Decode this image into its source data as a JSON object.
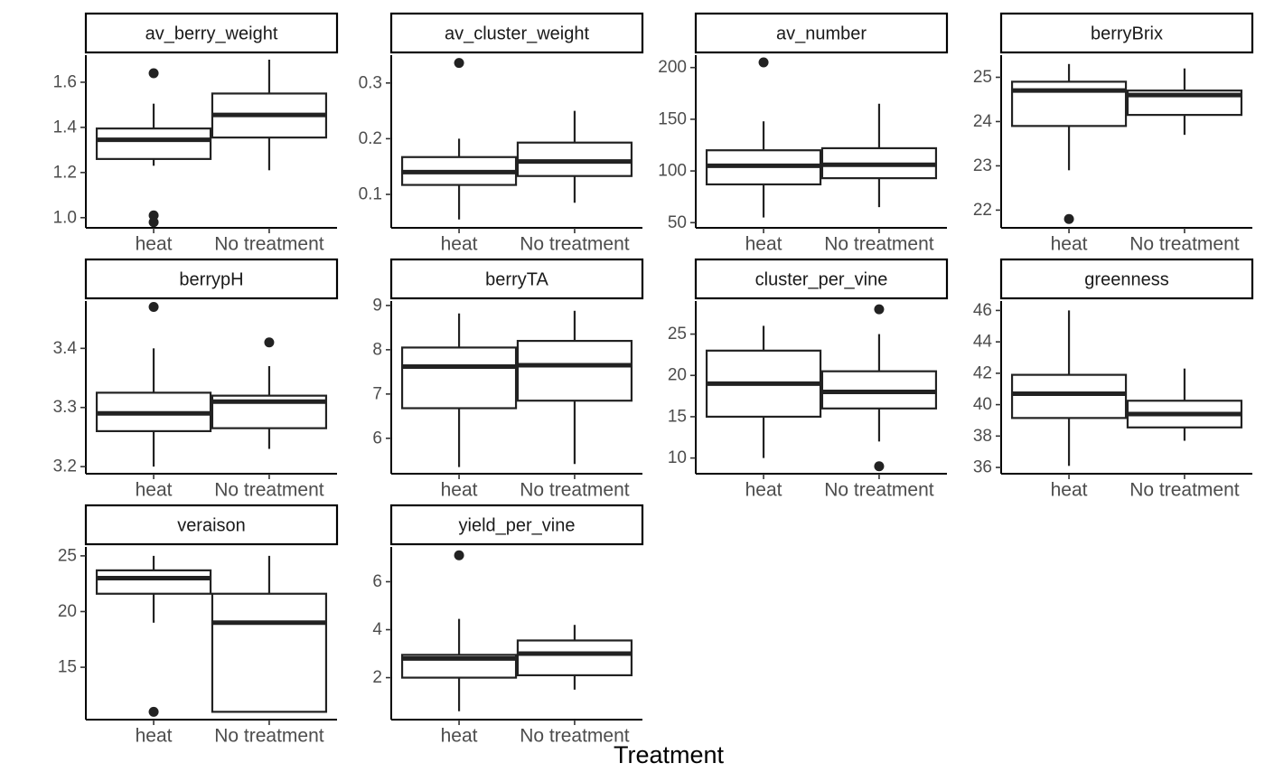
{
  "chart_data": {
    "type": "box",
    "xlabel": "Treatment",
    "categories": [
      "heat",
      "No treatment"
    ],
    "facets": [
      {
        "title": "av_berry_weight",
        "ylim": [
          0.955,
          1.72
        ],
        "yticks": [
          1.0,
          1.2,
          1.4,
          1.6
        ],
        "ytick_labels": [
          "1.0",
          "1.2",
          "1.4",
          "1.6"
        ],
        "boxes": [
          {
            "min": 1.23,
            "q1": 1.26,
            "median": 1.345,
            "q3": 1.395,
            "max": 1.505,
            "outliers": [
              1.64,
              1.01,
              0.98
            ]
          },
          {
            "min": 1.21,
            "q1": 1.355,
            "median": 1.455,
            "q3": 1.55,
            "max": 1.7,
            "outliers": []
          }
        ]
      },
      {
        "title": "av_cluster_weight",
        "ylim": [
          0.04,
          0.35
        ],
        "yticks": [
          0.1,
          0.2,
          0.3
        ],
        "ytick_labels": [
          "0.1",
          "0.2",
          "0.3"
        ],
        "boxes": [
          {
            "min": 0.055,
            "q1": 0.117,
            "median": 0.14,
            "q3": 0.167,
            "max": 0.2,
            "outliers": [
              0.336
            ]
          },
          {
            "min": 0.085,
            "q1": 0.133,
            "median": 0.159,
            "q3": 0.193,
            "max": 0.25,
            "outliers": []
          }
        ]
      },
      {
        "title": "av_number",
        "ylim": [
          45,
          212
        ],
        "yticks": [
          50,
          100,
          150,
          200
        ],
        "ytick_labels": [
          "50",
          "100",
          "150",
          "200"
        ],
        "boxes": [
          {
            "min": 55,
            "q1": 87,
            "median": 105,
            "q3": 120,
            "max": 148,
            "outliers": [
              205
            ]
          },
          {
            "min": 65,
            "q1": 93,
            "median": 106,
            "q3": 122,
            "max": 165,
            "outliers": []
          }
        ]
      },
      {
        "title": "berryBrix",
        "ylim": [
          21.6,
          25.5
        ],
        "yticks": [
          22,
          23,
          24,
          25
        ],
        "ytick_labels": [
          "22",
          "23",
          "24",
          "25"
        ],
        "boxes": [
          {
            "min": 22.9,
            "q1": 23.9,
            "median": 24.7,
            "q3": 24.9,
            "max": 25.3,
            "outliers": [
              21.8
            ]
          },
          {
            "min": 23.7,
            "q1": 24.15,
            "median": 24.6,
            "q3": 24.7,
            "max": 25.2,
            "outliers": []
          }
        ]
      },
      {
        "title": "berrypH",
        "ylim": [
          3.188,
          3.48
        ],
        "yticks": [
          3.2,
          3.3,
          3.4
        ],
        "ytick_labels": [
          "3.2",
          "3.3",
          "3.4"
        ],
        "boxes": [
          {
            "min": 3.2,
            "q1": 3.26,
            "median": 3.29,
            "q3": 3.325,
            "max": 3.4,
            "outliers": [
              3.47
            ]
          },
          {
            "min": 3.23,
            "q1": 3.265,
            "median": 3.31,
            "q3": 3.32,
            "max": 3.37,
            "outliers": [
              3.41
            ]
          }
        ]
      },
      {
        "title": "berryTA",
        "ylim": [
          5.2,
          9.1
        ],
        "yticks": [
          6,
          7,
          8,
          9
        ],
        "ytick_labels": [
          "6",
          "7",
          "8",
          "9"
        ],
        "boxes": [
          {
            "min": 5.35,
            "q1": 6.68,
            "median": 7.62,
            "q3": 8.05,
            "max": 8.82,
            "outliers": []
          },
          {
            "min": 5.42,
            "q1": 6.85,
            "median": 7.65,
            "q3": 8.2,
            "max": 8.88,
            "outliers": []
          }
        ]
      },
      {
        "title": "cluster_per_vine",
        "ylim": [
          8.1,
          29.0
        ],
        "yticks": [
          10,
          15,
          20,
          25
        ],
        "ytick_labels": [
          "10",
          "15",
          "20",
          "25"
        ],
        "boxes": [
          {
            "min": 10,
            "q1": 15,
            "median": 19,
            "q3": 23,
            "max": 26,
            "outliers": []
          },
          {
            "min": 12,
            "q1": 16,
            "median": 18,
            "q3": 20.5,
            "max": 25,
            "outliers": [
              28,
              9
            ]
          }
        ]
      },
      {
        "title": "greenness",
        "ylim": [
          35.6,
          46.6
        ],
        "yticks": [
          36,
          38,
          40,
          42,
          44,
          46
        ],
        "ytick_labels": [
          "36",
          "38",
          "40",
          "42",
          "44",
          "46"
        ],
        "boxes": [
          {
            "min": 36.1,
            "q1": 39.15,
            "median": 40.7,
            "q3": 41.9,
            "max": 46.0,
            "outliers": []
          },
          {
            "min": 37.7,
            "q1": 38.55,
            "median": 39.4,
            "q3": 40.25,
            "max": 42.3,
            "outliers": []
          }
        ]
      },
      {
        "title": "veraison",
        "ylim": [
          10.3,
          25.8
        ],
        "yticks": [
          15,
          20,
          25
        ],
        "ytick_labels": [
          "15",
          "20",
          "25"
        ],
        "boxes": [
          {
            "min": 19,
            "q1": 21.6,
            "median": 23,
            "q3": 23.7,
            "max": 25,
            "outliers": [
              11
            ]
          },
          {
            "min": 11,
            "q1": 11,
            "median": 19,
            "q3": 21.6,
            "max": 25,
            "outliers": []
          }
        ]
      },
      {
        "title": "yield_per_vine",
        "ylim": [
          0.25,
          7.45
        ],
        "yticks": [
          2,
          4,
          6
        ],
        "ytick_labels": [
          "2",
          "4",
          "6"
        ],
        "boxes": [
          {
            "min": 0.6,
            "q1": 2.0,
            "median": 2.8,
            "q3": 2.95,
            "max": 4.45,
            "outliers": [
              7.1
            ]
          },
          {
            "min": 1.5,
            "q1": 2.1,
            "median": 3.0,
            "q3": 3.55,
            "max": 4.2,
            "outliers": []
          }
        ]
      }
    ]
  }
}
